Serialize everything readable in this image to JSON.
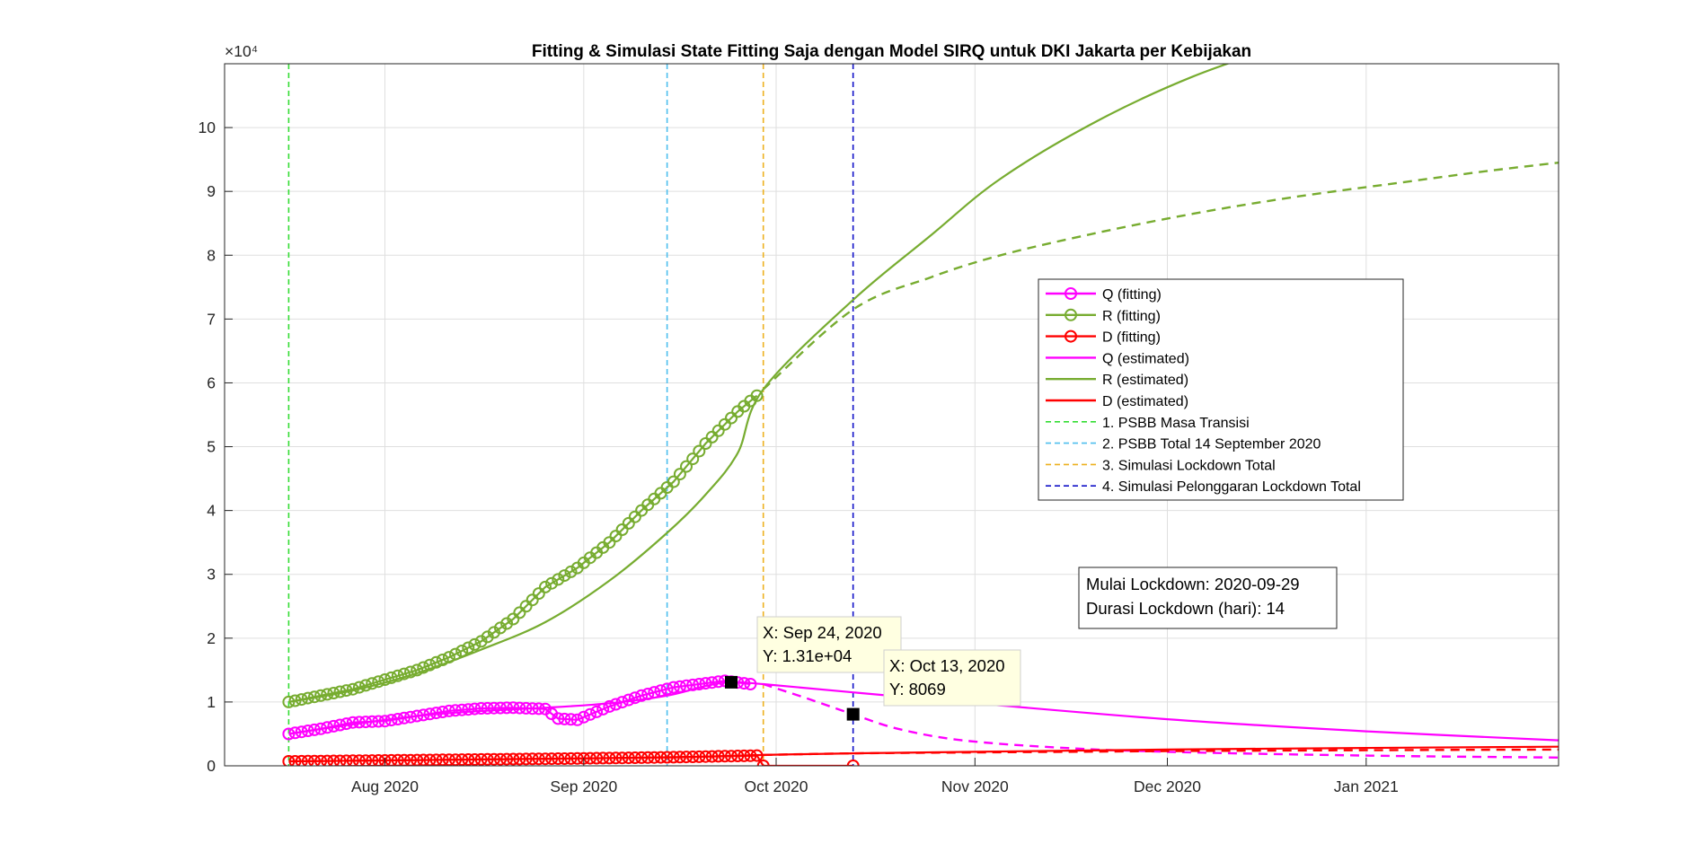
{
  "chart_data": {
    "type": "line",
    "title": "Fitting & Simulasi State Fitting Saja dengan Model SIRQ untuk DKI Jakarta per Kebijakan",
    "xlabel": "",
    "ylabel": "",
    "y_exponent_label": "×10⁴",
    "ylim": [
      0,
      110000
    ],
    "xlim": [
      "2020-07-07",
      "2021-01-31"
    ],
    "grid": true,
    "x_ticks": [
      {
        "date": "2020-08-01",
        "label": "Aug 2020"
      },
      {
        "date": "2020-09-01",
        "label": "Sep 2020"
      },
      {
        "date": "2020-10-01",
        "label": "Oct 2020"
      },
      {
        "date": "2020-11-01",
        "label": "Nov 2020"
      },
      {
        "date": "2020-12-01",
        "label": "Dec 2020"
      },
      {
        "date": "2021-01-01",
        "label": "Jan 2021"
      }
    ],
    "y_ticks": [
      {
        "value": 0,
        "label": "0"
      },
      {
        "value": 10000,
        "label": "1"
      },
      {
        "value": 20000,
        "label": "2"
      },
      {
        "value": 30000,
        "label": "3"
      },
      {
        "value": 40000,
        "label": "4"
      },
      {
        "value": 50000,
        "label": "5"
      },
      {
        "value": 60000,
        "label": "6"
      },
      {
        "value": 70000,
        "label": "7"
      },
      {
        "value": 80000,
        "label": "8"
      },
      {
        "value": 90000,
        "label": "9"
      },
      {
        "value": 100000,
        "label": "10"
      }
    ],
    "legend_position": "center-right",
    "series": [
      {
        "name": "Q (fitting)",
        "color": "#ff00ff",
        "style": "marker-line",
        "x": [
          "2020-07-17",
          "2020-07-22",
          "2020-07-27",
          "2020-08-01",
          "2020-08-06",
          "2020-08-11",
          "2020-08-16",
          "2020-08-21",
          "2020-08-26",
          "2020-08-28",
          "2020-08-31",
          "2020-09-05",
          "2020-09-10",
          "2020-09-15",
          "2020-09-19",
          "2020-09-23",
          "2020-09-27"
        ],
        "y": [
          5000,
          5800,
          6800,
          7000,
          7800,
          8600,
          9000,
          9100,
          8900,
          7400,
          7200,
          9300,
          11000,
          12300,
          12800,
          13300,
          12800
        ]
      },
      {
        "name": "R (fitting)",
        "color": "#77ac30",
        "style": "marker-line",
        "x": [
          "2020-07-17",
          "2020-07-22",
          "2020-07-27",
          "2020-08-01",
          "2020-08-06",
          "2020-08-11",
          "2020-08-16",
          "2020-08-21",
          "2020-08-26",
          "2020-08-31",
          "2020-09-05",
          "2020-09-10",
          "2020-09-15",
          "2020-09-20",
          "2020-09-25",
          "2020-09-28"
        ],
        "y": [
          10000,
          11000,
          12000,
          13500,
          15000,
          17000,
          19500,
          23000,
          28000,
          31000,
          35000,
          40000,
          44500,
          50500,
          55500,
          58000
        ]
      },
      {
        "name": "D (fitting)",
        "color": "#ff0000",
        "style": "marker-line",
        "x": [
          "2020-07-17",
          "2020-08-01",
          "2020-08-16",
          "2020-08-31",
          "2020-09-15",
          "2020-09-28",
          "2020-09-29",
          "2020-10-13"
        ],
        "y": [
          700,
          850,
          1000,
          1150,
          1350,
          1600,
          0,
          0
        ]
      },
      {
        "name": "Q (estimated)",
        "color": "#ff00ff",
        "style": "solid",
        "x": [
          "2020-07-17",
          "2020-07-27",
          "2020-08-06",
          "2020-08-16",
          "2020-08-26",
          "2020-09-05",
          "2020-09-14",
          "2020-09-20",
          "2020-09-24",
          "2020-09-29",
          "2020-10-13",
          "2020-11-01",
          "2020-12-01",
          "2021-01-01",
          "2021-01-31"
        ],
        "y": [
          5000,
          6500,
          7800,
          8600,
          9100,
          9800,
          11000,
          12500,
          13100,
          12800,
          11500,
          9800,
          7300,
          5400,
          4000
        ]
      },
      {
        "name": "R (estimated)",
        "color": "#77ac30",
        "style": "solid",
        "x": [
          "2020-07-17",
          "2020-07-27",
          "2020-08-06",
          "2020-08-16",
          "2020-08-26",
          "2020-09-05",
          "2020-09-14",
          "2020-09-20",
          "2020-09-25",
          "2020-09-29",
          "2020-10-13",
          "2020-10-25",
          "2020-11-05",
          "2020-11-20",
          "2020-12-05",
          "2020-12-22"
        ],
        "y": [
          10000,
          11800,
          14500,
          18200,
          22500,
          29000,
          36500,
          42500,
          49000,
          59000,
          73000,
          83000,
          92000,
          101000,
          108000,
          114000
        ]
      },
      {
        "name": "D (estimated)",
        "color": "#ff0000",
        "style": "solid",
        "x": [
          "2020-07-17",
          "2020-08-16",
          "2020-09-14",
          "2020-09-29",
          "2020-10-13",
          "2020-11-01",
          "2020-12-01",
          "2021-01-01",
          "2021-01-31"
        ],
        "y": [
          700,
          1000,
          1300,
          1700,
          1950,
          2200,
          2550,
          2800,
          3000
        ]
      }
    ],
    "simulation_series": [
      {
        "color": "#77ac30",
        "style": "dashed",
        "x": [
          "2020-09-29",
          "2020-10-13",
          "2020-10-25",
          "2020-11-05",
          "2020-11-20",
          "2020-12-05",
          "2020-12-20",
          "2021-01-05",
          "2021-01-20",
          "2021-01-31"
        ],
        "y": [
          59000,
          71500,
          76500,
          80000,
          83500,
          86500,
          89000,
          91200,
          93200,
          94500
        ]
      },
      {
        "color": "#ff00ff",
        "style": "dashed",
        "x": [
          "2020-09-29",
          "2020-10-06",
          "2020-10-13",
          "2020-10-20",
          "2020-10-30",
          "2020-11-15",
          "2020-12-01",
          "2021-01-01",
          "2021-01-31"
        ],
        "y": [
          12800,
          10500,
          8069,
          5800,
          4000,
          2800,
          2200,
          1600,
          1300
        ]
      },
      {
        "color": "#ff0000",
        "style": "dashed",
        "x": [
          "2020-09-29",
          "2020-10-13",
          "2020-11-01",
          "2020-12-01",
          "2021-01-01",
          "2021-01-31"
        ],
        "y": [
          1700,
          1950,
          2100,
          2300,
          2450,
          2550
        ]
      }
    ],
    "vertical_lines": [
      {
        "name": "1. PSBB Masa Transisi",
        "date": "2020-07-17",
        "color": "#33dd33"
      },
      {
        "name": "2. PSBB Total 14 September 2020",
        "date": "2020-09-14",
        "color": "#4dbeee"
      },
      {
        "name": "3. Simulasi Lockdown Total",
        "date": "2020-09-29",
        "color": "#edb120"
      },
      {
        "name": "4. Simulasi Pelonggaran Lockdown Total",
        "date": "2020-10-13",
        "color": "#1010c8"
      }
    ],
    "datatips": [
      {
        "date": "2020-09-24",
        "value": 13100,
        "line1": "X: Sep 24, 2020",
        "line2": "Y: 1.31e+04"
      },
      {
        "date": "2020-10-13",
        "value": 8069,
        "line1": "X: Oct 13, 2020",
        "line2": "Y: 8069"
      }
    ],
    "annotation_lines": [
      "Mulai Lockdown: 2020-09-29",
      "Durasi Lockdown (hari): 14"
    ]
  }
}
